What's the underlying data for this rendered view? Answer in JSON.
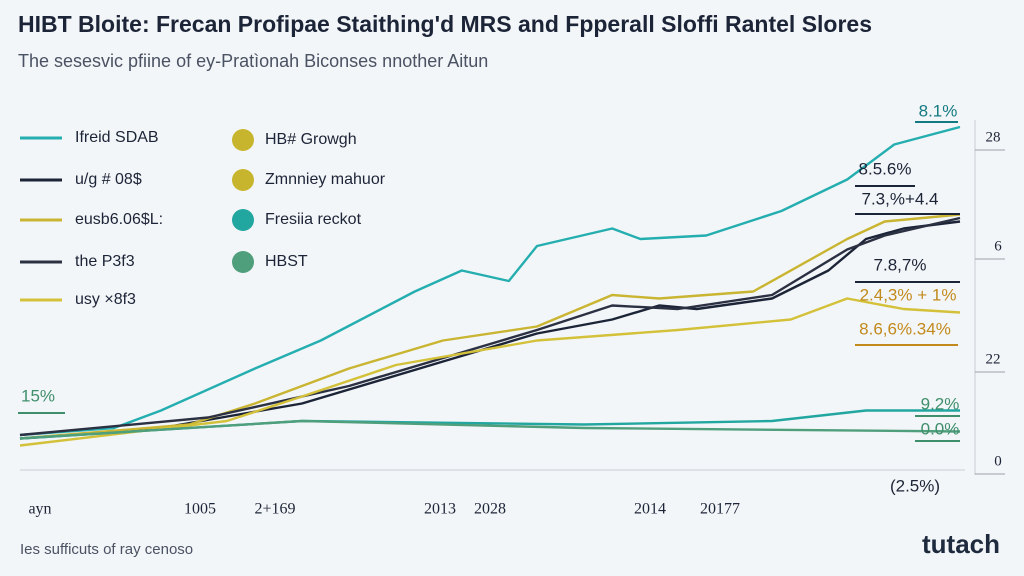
{
  "chart_data": {
    "type": "line",
    "title": "HIBT Bloite: Frecan Profipae Staithing'd MRS and Fpperall Sloffi Rantel Slores",
    "subtitle": "The sesesvic pfiine of ey-Pratìonah Biconses nnother Aitun",
    "xlim": [
      0,
      100
    ],
    "ylim": [
      0,
      100
    ],
    "series": [
      {
        "name": "Ifreid SDAB",
        "color": "#25aeb0",
        "legend": "line",
        "x": [
          0,
          10,
          15,
          25,
          32,
          42,
          47,
          52,
          55,
          63,
          66,
          73,
          81,
          88,
          93,
          100
        ],
        "values": [
          10,
          12,
          17,
          29,
          37,
          51,
          57,
          54,
          64,
          69,
          66,
          67,
          74,
          83,
          93,
          98
        ]
      },
      {
        "name": "u/g # 08$",
        "color": "#1c2437",
        "legend": "line",
        "x": [
          0,
          15,
          30,
          45,
          55,
          63,
          68,
          72,
          80,
          86,
          90,
          94,
          100
        ],
        "values": [
          9,
          12,
          19,
          31,
          39,
          43,
          47,
          46,
          49,
          57,
          66,
          69,
          71
        ]
      },
      {
        "name": "eusb6.06$L:",
        "color": "#c9b531",
        "legend": "line",
        "x": [
          0,
          18,
          25,
          35,
          45,
          55,
          63,
          68,
          78,
          88,
          92,
          100
        ],
        "values": [
          9,
          13,
          19,
          29,
          37,
          41,
          50,
          49,
          51,
          66,
          71,
          73
        ]
      },
      {
        "name": "the P3f3",
        "color": "#2b3142",
        "legend": "line",
        "x": [
          0,
          20,
          35,
          55,
          63,
          70,
          80,
          88,
          92,
          100
        ],
        "values": [
          10,
          15,
          24,
          40,
          47,
          46,
          50,
          63,
          67,
          72
        ]
      },
      {
        "name": "usy ×8f3",
        "color": "#d4c13a",
        "legend": "line",
        "x": [
          0,
          22,
          30,
          40,
          55,
          70,
          82,
          88,
          94,
          100
        ],
        "values": [
          7,
          14,
          21,
          30,
          37,
          40,
          43,
          49,
          46,
          45
        ]
      },
      {
        "name": "Fresiia reckot",
        "color": "#22a6a0",
        "legend": "dot",
        "x": [
          0,
          30,
          60,
          80,
          90,
          100
        ],
        "values": [
          9,
          14,
          13,
          14,
          17,
          17
        ]
      },
      {
        "name": "HBST",
        "color": "#4f9e7c",
        "legend": "dot",
        "x": [
          0,
          30,
          60,
          100
        ],
        "values": [
          9,
          14,
          12,
          11
        ]
      }
    ],
    "extra_legend": [
      {
        "name": "HB# Growgh",
        "color": "#c8b52e"
      },
      {
        "name": "Zmnniey mahuor",
        "color": "#c8b52e"
      }
    ],
    "annotations": [
      {
        "text": "8.1%",
        "color": "#137a82"
      },
      {
        "text": "8.5.6%",
        "color": "#1c2437"
      },
      {
        "text": "7.3,%+4.4",
        "color": "#1c2437"
      },
      {
        "text": "7.8,7%",
        "color": "#1c2437"
      },
      {
        "text": "2.4,3% + 1%",
        "color": "#c28a1c"
      },
      {
        "text": "8.6,6%.34%",
        "color": "#c28a1c"
      },
      {
        "text": "9.2%",
        "color": "#3f8f6c"
      },
      {
        "text": "0.0%",
        "color": "#3f8f6c"
      },
      {
        "text": "15%",
        "color": "#3f8f6c"
      },
      {
        "text": "(2.5%)",
        "color": "#1c2437"
      }
    ],
    "right_labels": [
      "28",
      "6",
      "22",
      "0"
    ],
    "x_labels": [
      "ayn",
      "1005",
      "2+169",
      "2013",
      "2028",
      "2014",
      "20177"
    ],
    "footer": "Ies sufficuts of ray cenoso",
    "logo": "tutach"
  }
}
